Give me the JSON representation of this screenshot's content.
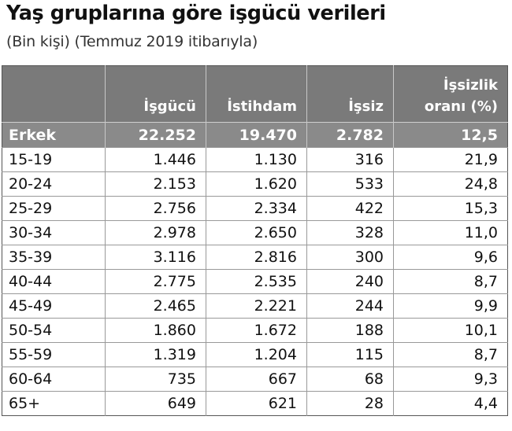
{
  "title": "Yaş gruplarına göre işgücü verileri",
  "subtitle": "(Bin kişi) (Temmuz 2019 itibarıyla)",
  "headers": [
    "",
    "İşgücü",
    "İstihdam",
    "İşsiz",
    "İşsizlik oranı (%)"
  ],
  "header_lines": {
    "col4_line1": "İşsizlik",
    "col4_line2": "oranı (%)"
  },
  "summary_row": [
    "Erkek",
    "22.252",
    "19.470",
    "2.782",
    "12,5"
  ],
  "rows": [
    [
      "15-19",
      "1.446",
      "1.130",
      "316",
      "21,9"
    ],
    [
      "20-24",
      "2.153",
      "1.620",
      "533",
      "24,8"
    ],
    [
      "25-29",
      "2.756",
      "2.334",
      "422",
      "15,3"
    ],
    [
      "30-34",
      "2.978",
      "2.650",
      "328",
      "11,0"
    ],
    [
      "35-39",
      "3.116",
      "2.816",
      "300",
      "9,6"
    ],
    [
      "40-44",
      "2.775",
      "2.535",
      "240",
      "8,7"
    ],
    [
      "45-49",
      "2.465",
      "2.221",
      "244",
      "9,9"
    ],
    [
      "50-54",
      "1.860",
      "1.672",
      "188",
      "10,1"
    ],
    [
      "55-59",
      "1.319",
      "1.204",
      "115",
      "8,7"
    ],
    [
      "60-64",
      "735",
      "667",
      "68",
      "9,3"
    ],
    [
      "65+",
      "649",
      "621",
      "28",
      "4,4"
    ]
  ]
}
